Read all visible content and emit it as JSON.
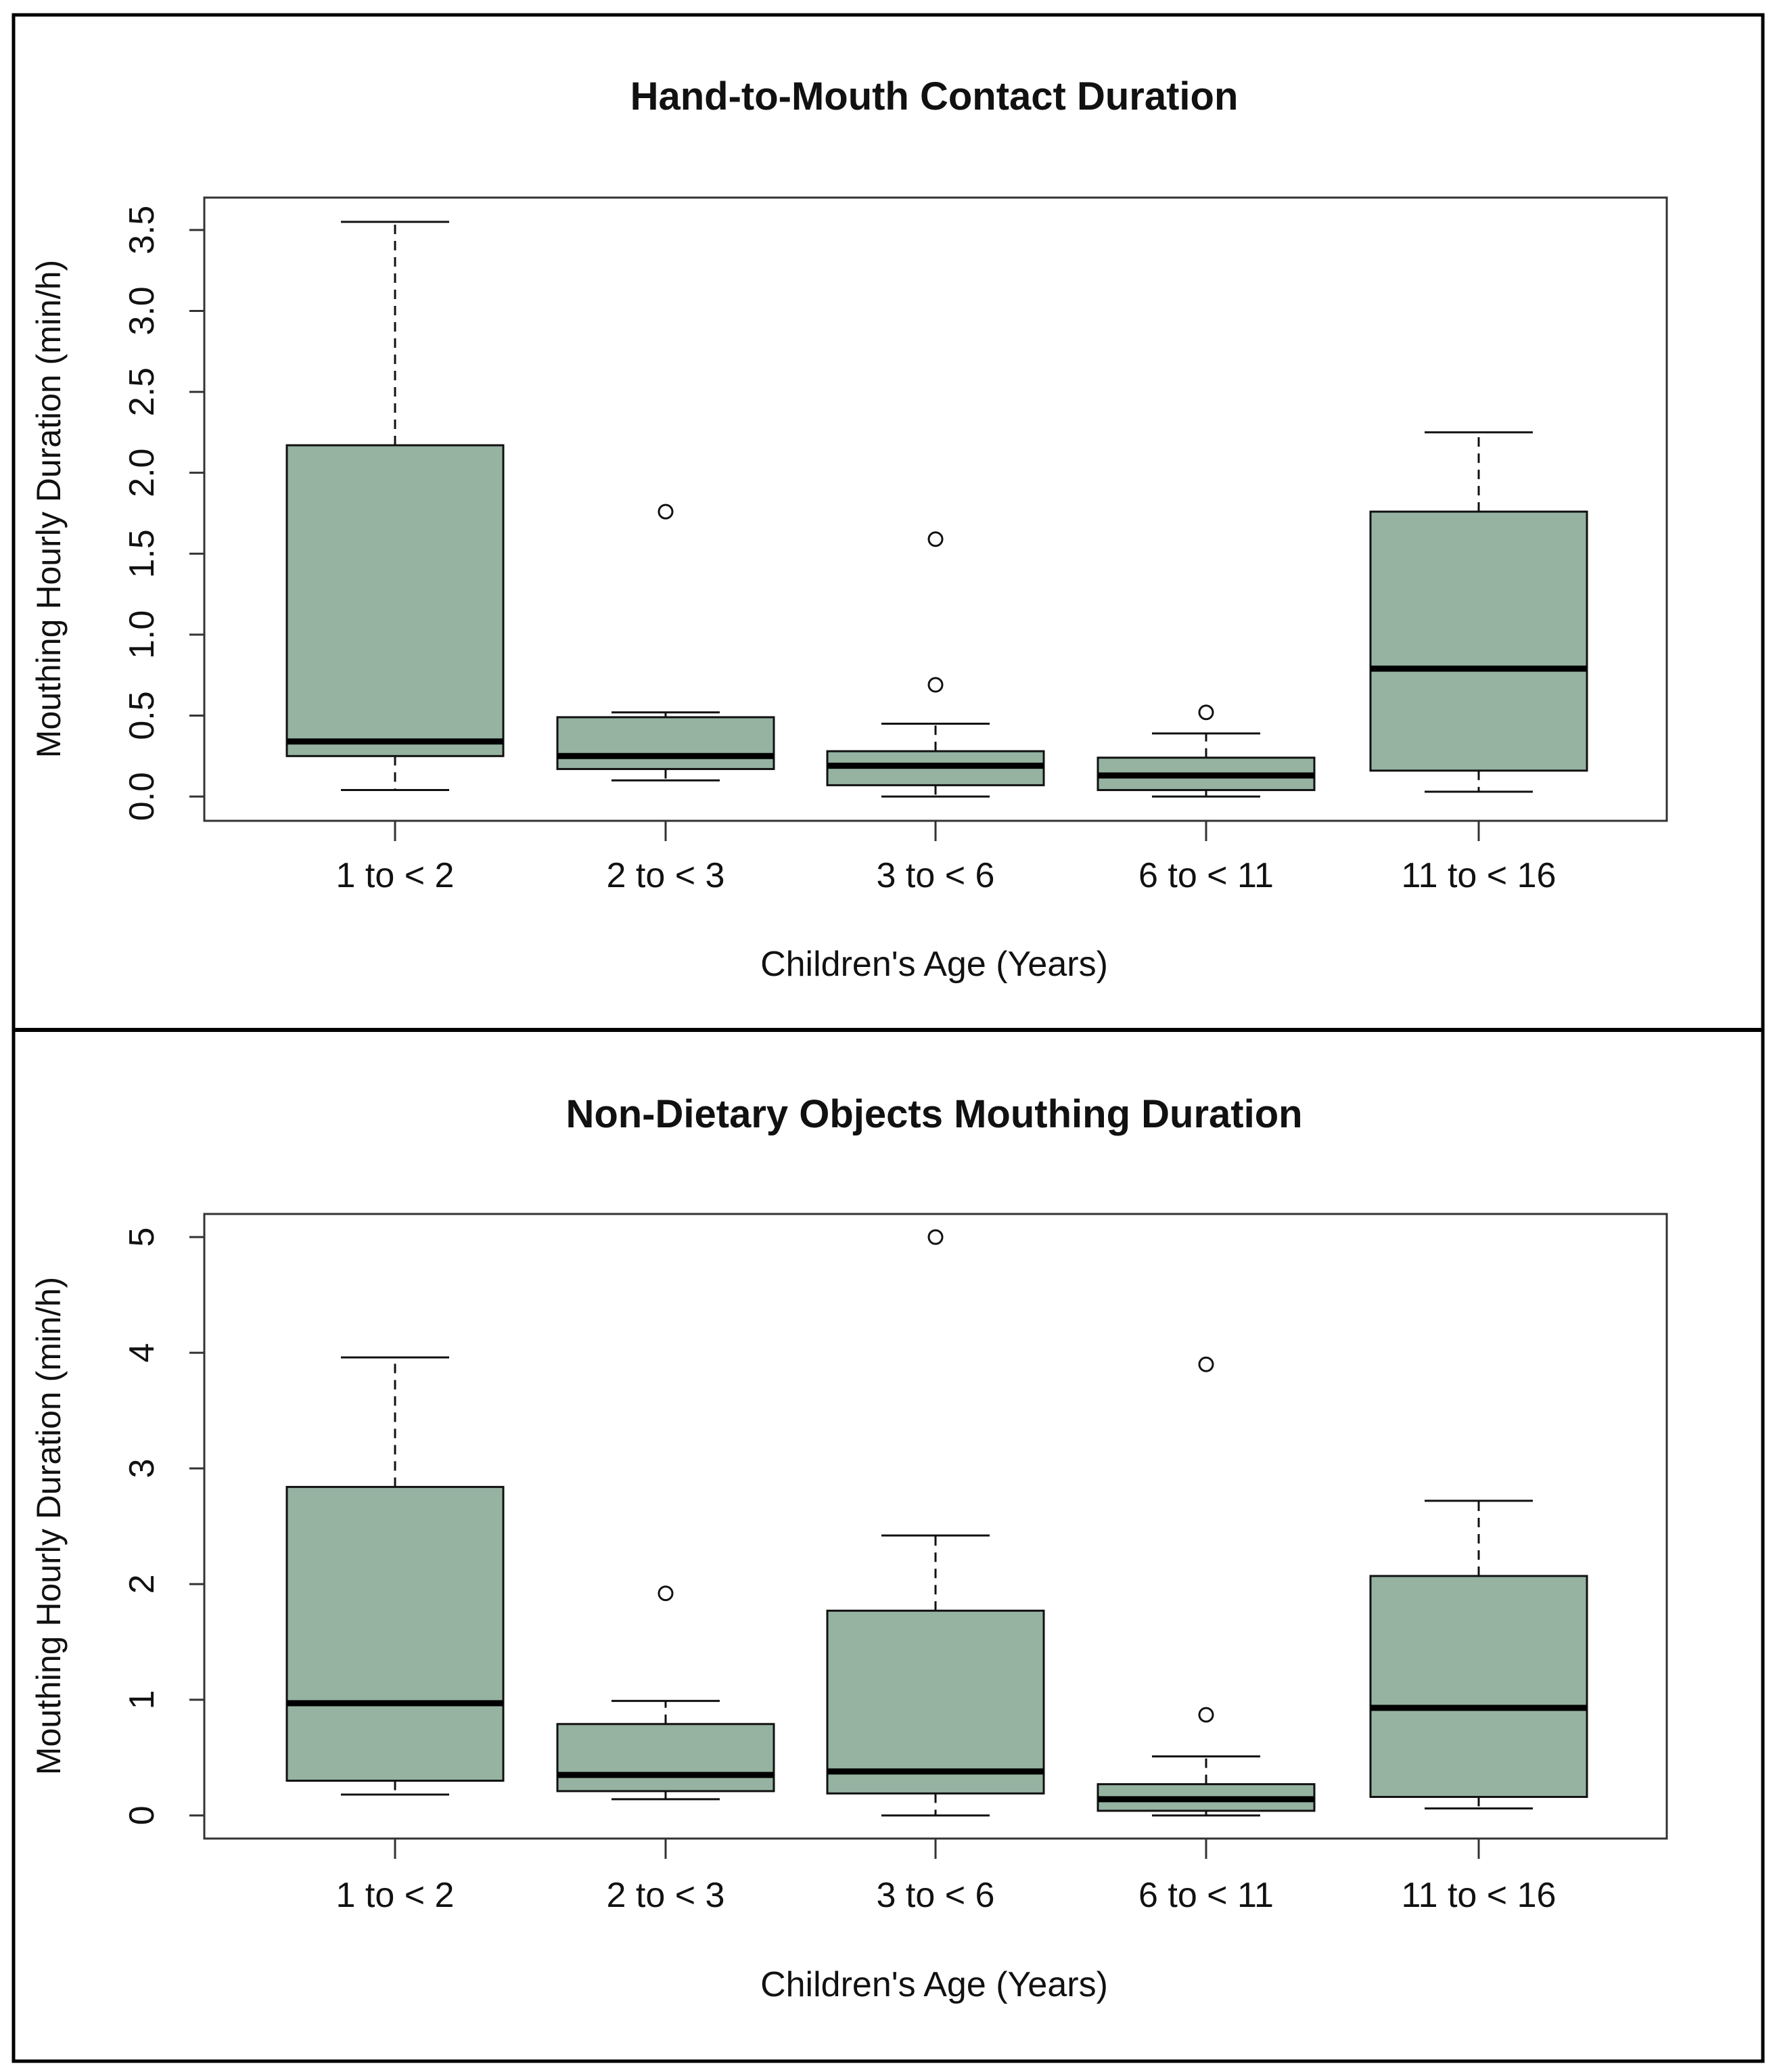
{
  "figure": {
    "box_fill": "#96b3a2",
    "outer_border": "#000000"
  },
  "chart_data": [
    {
      "type": "box",
      "title": "Hand-to-Mouth Contact Duration",
      "xlabel": "Children's Age (Years)",
      "ylabel": "Mouthing Hourly Duration (min/h)",
      "ylim": [
        -0.15,
        3.7
      ],
      "yticks": [
        0.0,
        0.5,
        1.0,
        1.5,
        2.0,
        2.5,
        3.0,
        3.5
      ],
      "ytick_labels": [
        "0.0",
        "0.5",
        "1.0",
        "1.5",
        "2.0",
        "2.5",
        "3.0",
        "3.5"
      ],
      "categories": [
        "1 to < 2",
        "2 to < 3",
        "3 to < 6",
        "6 to < 11",
        "11 to < 16"
      ],
      "boxes": [
        {
          "whisker_low": 0.04,
          "q1": 0.25,
          "median": 0.34,
          "q3": 2.17,
          "whisker_high": 3.55,
          "outliers": []
        },
        {
          "whisker_low": 0.1,
          "q1": 0.17,
          "median": 0.25,
          "q3": 0.49,
          "whisker_high": 0.52,
          "outliers": [
            1.76
          ]
        },
        {
          "whisker_low": 0.0,
          "q1": 0.07,
          "median": 0.19,
          "q3": 0.28,
          "whisker_high": 0.45,
          "outliers": [
            0.69,
            1.59
          ]
        },
        {
          "whisker_low": 0.0,
          "q1": 0.04,
          "median": 0.13,
          "q3": 0.24,
          "whisker_high": 0.39,
          "outliers": [
            0.52
          ]
        },
        {
          "whisker_low": 0.03,
          "q1": 0.16,
          "median": 0.79,
          "q3": 1.76,
          "whisker_high": 2.25,
          "outliers": []
        }
      ]
    },
    {
      "type": "box",
      "title": "Non-Dietary Objects Mouthing Duration",
      "xlabel": "Children's Age (Years)",
      "ylabel": "Mouthing Hourly Duration (min/h)",
      "ylim": [
        -0.2,
        5.2
      ],
      "yticks": [
        0,
        1,
        2,
        3,
        4,
        5
      ],
      "ytick_labels": [
        "0",
        "1",
        "2",
        "3",
        "4",
        "5"
      ],
      "categories": [
        "1 to < 2",
        "2 to < 3",
        "3 to < 6",
        "6 to < 11",
        "11 to < 16"
      ],
      "boxes": [
        {
          "whisker_low": 0.18,
          "q1": 0.3,
          "median": 0.97,
          "q3": 2.84,
          "whisker_high": 3.96,
          "outliers": []
        },
        {
          "whisker_low": 0.14,
          "q1": 0.21,
          "median": 0.35,
          "q3": 0.79,
          "whisker_high": 0.99,
          "outliers": [
            1.92
          ]
        },
        {
          "whisker_low": 0.0,
          "q1": 0.19,
          "median": 0.38,
          "q3": 1.77,
          "whisker_high": 2.42,
          "outliers": [
            5.0
          ]
        },
        {
          "whisker_low": 0.0,
          "q1": 0.04,
          "median": 0.14,
          "q3": 0.27,
          "whisker_high": 0.51,
          "outliers": [
            0.87,
            3.9
          ]
        },
        {
          "whisker_low": 0.06,
          "q1": 0.16,
          "median": 0.93,
          "q3": 2.07,
          "whisker_high": 2.72,
          "outliers": []
        }
      ]
    }
  ]
}
